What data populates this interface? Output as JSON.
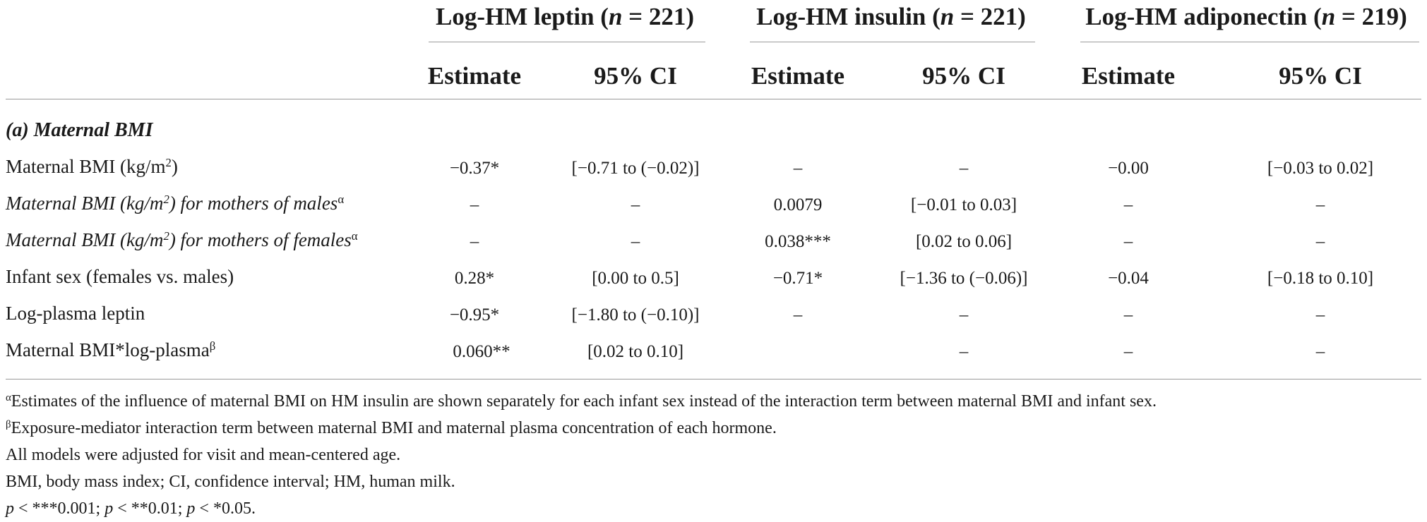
{
  "groups": [
    {
      "label": "Log-HM leptin (",
      "n": "n",
      "eq": " = 221)"
    },
    {
      "label": "Log-HM insulin (",
      "n": "n",
      "eq": " = 221)"
    },
    {
      "label": "Log-HM adiponectin (",
      "n": "n",
      "eq": " = 219)"
    }
  ],
  "columns": [
    "Estimate",
    "95% CI",
    "Estimate",
    "95% CI",
    "Estimate",
    "95% CI"
  ],
  "section_title": "(a) Maternal BMI",
  "rows": [
    {
      "label_pre": "Maternal BMI (kg/m",
      "label_sup": "2",
      "label_post": ")",
      "label_sup2": "",
      "cells": [
        "−0.37*",
        "[−0.71 to (−0.02)]",
        "–",
        "–",
        "−0.00",
        "[−0.03 to 0.02]"
      ]
    },
    {
      "label_pre": "Maternal BMI (kg/m",
      "label_sup": "2",
      "label_post": ") for mothers of males",
      "label_sup2": "α",
      "cells": [
        "–",
        "–",
        "0.0079",
        "[−0.01 to 0.03]",
        "–",
        "–"
      ]
    },
    {
      "label_pre": "Maternal BMI (kg/m",
      "label_sup": "2",
      "label_post": ") for mothers of females",
      "label_sup2": "α",
      "cells": [
        "–",
        "–",
        "0.038***",
        "[0.02 to 0.06]",
        "–",
        "–"
      ]
    },
    {
      "label_pre": "Infant sex (females vs. males)",
      "label_sup": "",
      "label_post": "",
      "label_sup2": "",
      "cells": [
        "0.28*",
        "[0.00 to 0.5]",
        "−0.71*",
        "[−1.36 to (−0.06)]",
        "−0.04",
        "[−0.18 to 0.10]"
      ]
    },
    {
      "label_pre": "Log-plasma leptin",
      "label_sup": "",
      "label_post": "",
      "label_sup2": "",
      "cells": [
        "−0.95*",
        "[−1.80 to (−0.10)]",
        "–",
        "–",
        "–",
        "–"
      ]
    },
    {
      "label_pre": "Maternal BMI*log-plasma",
      "label_sup": "",
      "label_post": "",
      "label_sup2": "β",
      "cells": [
        "0.060**",
        "[0.02 to 0.10]",
        "",
        "–",
        "–",
        "–"
      ]
    }
  ],
  "notes": [
    {
      "sym": "α",
      "text": "Estimates of the influence of maternal BMI on HM insulin are shown separately for each infant sex instead of the interaction term between maternal BMI and infant sex."
    },
    {
      "sym": "β",
      "text": "Exposure-mediator interaction term between maternal BMI and maternal plasma concentration of each hormone."
    },
    {
      "sym": "",
      "text": "All models were adjusted for visit and mean-centered age."
    },
    {
      "sym": "",
      "text": "BMI, body mass index; CI, confidence interval; HM, human milk."
    }
  ],
  "pvalue_note": {
    "p": "p",
    "parts": [
      " < ***0.001; ",
      " < **0.01; ",
      " < *0.05."
    ]
  }
}
